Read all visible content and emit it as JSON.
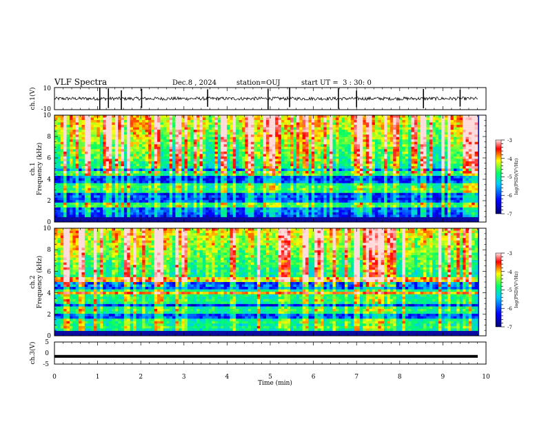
{
  "header": {
    "title": "VLF Spectra",
    "date": "Dec.8 , 2024",
    "station": "station=OUJ",
    "start_ut": "start UT =  3 : 30: 0"
  },
  "colors": {
    "waveform_line": "#000000",
    "axis": "#000000",
    "colorscale": [
      "#10107a",
      "#0000ff",
      "#00c8ff",
      "#00ff66",
      "#ffff00",
      "#ff0000",
      "#ffdddd"
    ]
  },
  "chart_data": [
    {
      "type": "line",
      "panel": "ch1-waveform",
      "ylabel": "ch.1(V)",
      "ylim": [
        -10,
        10
      ],
      "yticks": [
        "10",
        "-10"
      ],
      "xlim": [
        0,
        10
      ],
      "baseline": 0,
      "description_values": {
        "noise_amplitude": 1.5,
        "spike_times_min": [
          1.05,
          1.25,
          1.55,
          2.02,
          3.55,
          4.95,
          5.45,
          6.58,
          7.0,
          8.55,
          9.4
        ]
      }
    },
    {
      "type": "heatmap",
      "panel": "ch1-spectrogram",
      "ylabel_channel": "ch.1",
      "ylabel": "Frequency (kHz)",
      "ylim": [
        0,
        10
      ],
      "yticks": [
        "0",
        "2",
        "4",
        "6",
        "8",
        "10"
      ],
      "xlim": [
        0,
        10
      ],
      "colorbar": {
        "label": "log(PSD)(V²/Hz)",
        "range": [
          -7,
          -3
        ],
        "ticks": [
          "-3",
          "-4",
          "-5",
          "-6",
          "-7"
        ]
      }
    },
    {
      "type": "heatmap",
      "panel": "ch2-spectrogram",
      "ylabel_channel": "ch.2",
      "ylabel": "Frequency (kHz)",
      "ylim": [
        0,
        10
      ],
      "yticks": [
        "0",
        "2",
        "4",
        "6",
        "8",
        "10"
      ],
      "xlim": [
        0,
        10
      ],
      "colorbar": {
        "label": "log(PSD)(V²/Hz)",
        "range": [
          -7,
          -3
        ],
        "ticks": [
          "-3",
          "-4",
          "-5",
          "-6",
          "-7"
        ]
      }
    },
    {
      "type": "line",
      "panel": "ch3-waveform",
      "ylabel": "ch.3(V)",
      "ylim": [
        -5,
        5
      ],
      "yticks": [
        "5",
        "0",
        "-5"
      ],
      "xlim": [
        0,
        10
      ],
      "values_constant": -1.5
    }
  ],
  "xaxis": {
    "label": "Time (min)",
    "ticks": [
      "0",
      "1",
      "2",
      "3",
      "4",
      "5",
      "6",
      "7",
      "8",
      "9",
      "10"
    ]
  }
}
